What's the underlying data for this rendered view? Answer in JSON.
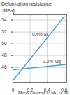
{
  "chart_data": {
    "type": "line",
    "title": "Deformation resistance",
    "y_label": "[MPa]",
    "x_label": "Mass content in Mg or Si",
    "xlim": [
      0,
      0.63
    ],
    "xticks": [
      0,
      0.2,
      0.4,
      0.6
    ],
    "ylim": [
      43.5,
      55
    ],
    "yticks": [
      46,
      48,
      50,
      52,
      54
    ],
    "grid": true,
    "series": [
      {
        "name": "0.4% Si",
        "color": "#3b9fdc",
        "x": [
          0,
          0.6
        ],
        "values": [
          43.8,
          54.6
        ]
      },
      {
        "name": "0.3% Mg",
        "color": "#3b9fdc",
        "x": [
          0,
          0.63
        ],
        "values": [
          45.6,
          46.5
        ]
      }
    ]
  }
}
